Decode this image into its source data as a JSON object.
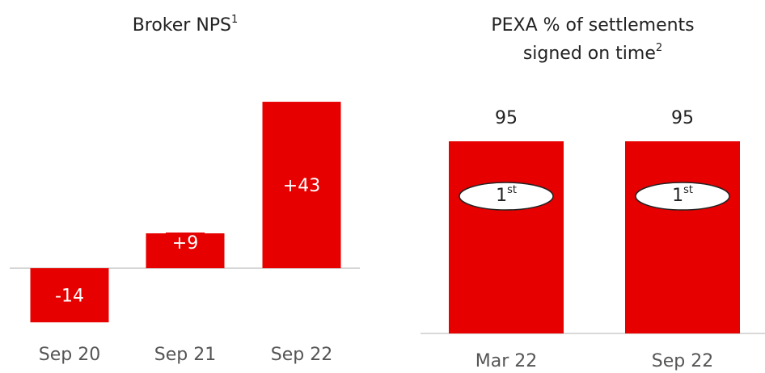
{
  "chart_data": [
    {
      "type": "bar",
      "title": "Broker NPS",
      "title_superscript": "1",
      "categories": [
        "Sep 20",
        "Sep 21",
        "Sep 22"
      ],
      "values": [
        -14,
        9,
        43
      ],
      "value_labels": [
        "-14",
        "+9",
        "+43"
      ],
      "color": "#e60000",
      "ylim": [
        -20,
        50
      ]
    },
    {
      "type": "bar",
      "title": "PEXA % of settlements",
      "title_line2": "signed on time",
      "title_superscript": "2",
      "categories": [
        "Mar 22",
        "Sep 22"
      ],
      "values": [
        95,
        95
      ],
      "color": "#e60000",
      "ylim": [
        0,
        100
      ],
      "badges": [
        {
          "text": "1",
          "superscript": "st"
        },
        {
          "text": "1",
          "superscript": "st"
        }
      ]
    }
  ]
}
